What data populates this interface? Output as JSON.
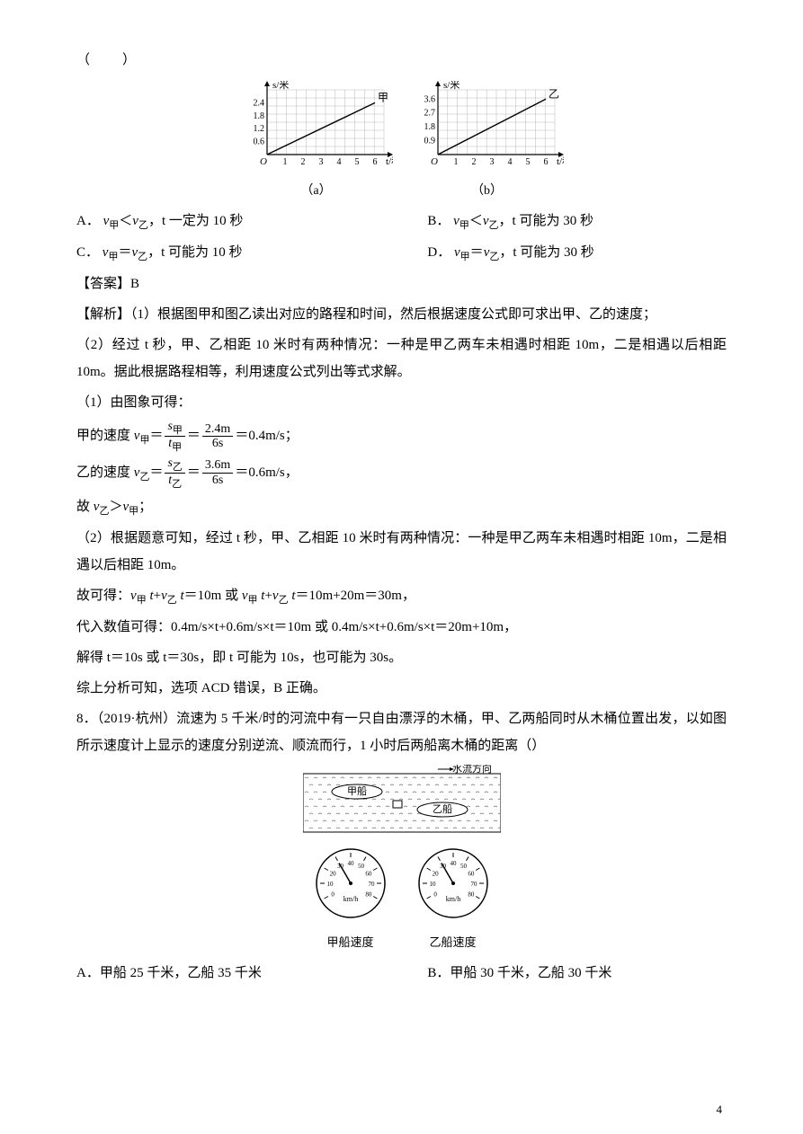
{
  "page_number": "4",
  "paren": "（　　）",
  "chart_a": {
    "type": "line",
    "y_axis_label": "s/米",
    "x_axis_label": "t/秒",
    "caption": "（a）",
    "series_label": "甲",
    "y_ticks": [
      "0.6",
      "1.2",
      "1.8",
      "2.4"
    ],
    "x_ticks": [
      "1",
      "2",
      "3",
      "4",
      "5",
      "6"
    ],
    "xlim": [
      0,
      6.5
    ],
    "ylim": [
      0,
      3.0
    ],
    "line_x": [
      0,
      6
    ],
    "line_y": [
      0,
      2.4
    ],
    "origin_label": "O",
    "line_color": "#000000",
    "grid_color": "#b8b8b8",
    "axis_color": "#000000"
  },
  "chart_b": {
    "type": "line",
    "y_axis_label": "s/米",
    "x_axis_label": "t/秒",
    "caption": "（b）",
    "series_label": "乙",
    "y_ticks": [
      "0.9",
      "1.8",
      "2.7",
      "3.6"
    ],
    "x_ticks": [
      "1",
      "2",
      "3",
      "4",
      "5",
      "6"
    ],
    "xlim": [
      0,
      6.5
    ],
    "ylim": [
      0,
      4.2
    ],
    "line_x": [
      0,
      6
    ],
    "line_y": [
      0,
      3.6
    ],
    "origin_label": "O",
    "line_color": "#000000",
    "grid_color": "#b8b8b8",
    "axis_color": "#000000"
  },
  "opts_row1": {
    "A_label": "A．",
    "A_text_pre": "v",
    "A_sub1": "甲",
    "A_cmp": "＜",
    "A_text_mid": "v",
    "A_sub2": "乙",
    "A_tail": "，t 一定为 10 秒",
    "B_label": "B．",
    "B_text_pre": "v",
    "B_sub1": "甲",
    "B_cmp": "＜",
    "B_text_mid": "v",
    "B_sub2": "乙",
    "B_tail": "，t 可能为 30 秒"
  },
  "opts_row2": {
    "C_label": "C．",
    "C_text_pre": "v",
    "C_sub1": "甲",
    "C_cmp": "＝",
    "C_text_mid": "v",
    "C_sub2": "乙",
    "C_tail": "，t 可能为 10 秒",
    "D_label": "D．",
    "D_text_pre": "v",
    "D_sub1": "甲",
    "D_cmp": "＝",
    "D_text_mid": "v",
    "D_sub2": "乙",
    "D_tail": "，t 可能为 30 秒"
  },
  "answer_label": "【答案】",
  "answer_value": "B",
  "analysis_label": "【解析】",
  "analysis_1": "（1）根据图甲和图乙读出对应的路程和时间，然后根据速度公式即可求出甲、乙的速度；",
  "analysis_2": "（2）经过 t 秒，甲、乙相距 10 米时有两种情况：一种是甲乙两车未相遇时相距 10m，二是相遇以后相距 10m。据此根据路程相等，利用速度公式列出等式求解。",
  "sol_1": "（1）由图象可得：",
  "sol_jia_pre": "甲的速度 ",
  "sol_jia_v": "v",
  "sol_jia_sub": "甲",
  "sol_jia_eq1": "＝",
  "frac_jia_num_s": "s",
  "frac_jia_num_sub": "甲",
  "frac_jia_den_t": "t",
  "frac_jia_den_sub": "甲",
  "sol_jia_eq2": "＝",
  "frac_jia2_num": "2.4m",
  "frac_jia2_den": "6s",
  "sol_jia_res": "＝0.4m/s；",
  "sol_yi_pre": "乙的速度 ",
  "sol_yi_v": "v",
  "sol_yi_sub": "乙",
  "sol_yi_eq1": "＝",
  "frac_yi_num_s": "s",
  "frac_yi_num_sub": "乙",
  "frac_yi_den_t": "t",
  "frac_yi_den_sub": "乙",
  "sol_yi_eq2": "＝",
  "frac_yi2_num": "3.6m",
  "frac_yi2_den": "6s",
  "sol_yi_res": "＝0.6m/s，",
  "sol_cmp_pre": "故 ",
  "sol_cmp_v1": "v",
  "sol_cmp_s1": "乙",
  "sol_cmp_op": "＞",
  "sol_cmp_v2": "v",
  "sol_cmp_s2": "甲",
  "sol_cmp_tail": "；",
  "sol_2": "（2）根据题意可知，经过 t 秒，甲、乙相距 10 米时有两种情况：一种是甲乙两车未相遇时相距 10m，二是相遇以后相距 10m。",
  "sol_eq_pre": "故可得：",
  "eq_v": "v",
  "eq_s1": "甲",
  "eq_t": " t",
  "eq_plus": "+",
  "eq_s2": "乙",
  "eq_body": "＝10m 或 ",
  "eq_body2": "＝10m+20m＝30m，",
  "sol_sub": "代入数值可得：0.4m/s×t+0.6m/s×t＝10m 或 0.4m/s×t+0.6m/s×t＝20m+10m，",
  "sol_res": "解得 t＝10s 或 t＝30s，即 t 可能为 10s，也可能为 30s。",
  "sol_conclusion": "综上分析可知，选项 ACD 错误，B 正确。",
  "q8_num": "8．",
  "q8_source": "（2019·杭州）",
  "q8_text1": "流速为 5 千米/时的河流中有一只自由漂浮的木桶，甲、乙两船同时从木桶位置出发，以如图所示速度计上显示的速度分别逆流、顺流而行，1 小时后两船离木桶的距离（）",
  "river": {
    "flow_label": "水流方向",
    "boat1": "甲船",
    "boat2": "乙船",
    "wave_color": "#6a6a6a",
    "border_color": "#000000"
  },
  "gauge1": {
    "label": "甲船速度",
    "ticks": [
      "0",
      "10",
      "20",
      "30",
      "40",
      "50",
      "60",
      "70",
      "80"
    ],
    "unit": "km/h",
    "value": 30
  },
  "gauge2": {
    "label": "乙船速度",
    "ticks": [
      "0",
      "10",
      "20",
      "30",
      "40",
      "50",
      "60",
      "70",
      "80"
    ],
    "unit": "km/h",
    "value": 30
  },
  "q8_opts": {
    "A_label": "A．",
    "A_text": "甲船 25 千米，乙船 35 千米",
    "B_label": "B．",
    "B_text": "甲船 30 千米，乙船 30 千米"
  }
}
